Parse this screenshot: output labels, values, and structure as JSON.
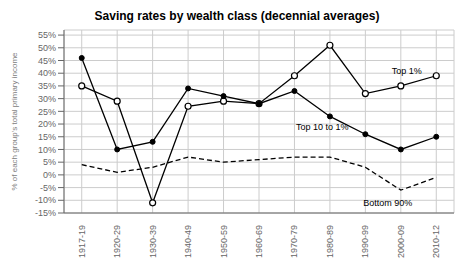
{
  "chart_data": {
    "type": "line",
    "title": "Saving rates by wealth class (decennial averages)",
    "ylabel": "% of each group's total primary income",
    "categories": [
      "1917-19",
      "1920-29",
      "1930-39",
      "1940-49",
      "1950-59",
      "1960-69",
      "1970-79",
      "1980-89",
      "1990-99",
      "2000-09",
      "2010-12"
    ],
    "series": [
      {
        "name": "Top 1%",
        "color": "#000000",
        "marker": "open_circle",
        "line_style": "solid",
        "values": [
          35,
          29,
          -11,
          27,
          29,
          28,
          39,
          51,
          32,
          35,
          39
        ]
      },
      {
        "name": "Top 10 to 1%",
        "color": "#000000",
        "marker": "filled_circle",
        "line_style": "solid",
        "values": [
          46,
          10,
          13,
          34,
          31,
          28,
          33,
          23,
          16,
          10,
          15
        ]
      },
      {
        "name": "Bottom 90%",
        "color": "#000000",
        "marker": "none",
        "line_style": "dashed",
        "values": [
          4,
          1,
          3,
          7,
          5,
          6,
          7,
          7,
          3,
          -6,
          -1
        ]
      }
    ],
    "ylim": [
      -15,
      57
    ],
    "yticks": [
      {
        "value": -15,
        "label": "-15%"
      },
      {
        "value": -10,
        "label": "-10%"
      },
      {
        "value": -5,
        "label": "-5%"
      },
      {
        "value": 0,
        "label": "0%"
      },
      {
        "value": 5,
        "label": "5%"
      },
      {
        "value": 10,
        "label": "10%"
      },
      {
        "value": 15,
        "label": "15%"
      },
      {
        "value": 20,
        "label": "20%"
      },
      {
        "value": 25,
        "label": "25%"
      },
      {
        "value": 30,
        "label": "30%"
      },
      {
        "value": 35,
        "label": "35%"
      },
      {
        "value": 40,
        "label": "40%"
      },
      {
        "value": 45,
        "label": "45%"
      },
      {
        "value": 50,
        "label": "50%"
      },
      {
        "value": 55,
        "label": "55%"
      }
    ],
    "grid": true,
    "annotations": [
      {
        "text": "Top 1%",
        "x": 8.6,
        "y": 41
      },
      {
        "text": "Top 10 to 1%",
        "x": 5.9,
        "y": 19
      },
      {
        "text": "Bottom 90%",
        "x": 7.8,
        "y": -11
      }
    ]
  }
}
